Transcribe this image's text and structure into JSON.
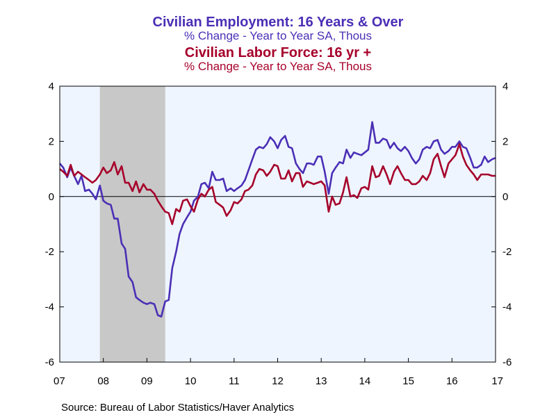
{
  "titles": {
    "series1_title": "Civilian Employment: 16 Years & Over",
    "series1_subtitle": "% Change - Year to Year     SA, Thous",
    "series2_title": "Civilian Labor Force: 16 yr +",
    "series2_subtitle": "% Change - Year to Year     SA, Thous"
  },
  "source": "Source:  Bureau of Labor Statistics/Haver Analytics",
  "colors": {
    "series1": "#4b2fb5",
    "series2": "#a6002a",
    "plot_background": "#eef5ff",
    "recession_shading": "#c8c8c8"
  },
  "chart_data": {
    "type": "line",
    "title": "Civilian Employment: 16 Years & Over / Civilian Labor Force: 16 yr +",
    "xlabel": "",
    "ylabel": "",
    "xlim": [
      2007.0,
      2017.0
    ],
    "ylim": [
      -6,
      4
    ],
    "y_ticks": [
      -6,
      -4,
      -2,
      0,
      2,
      4
    ],
    "y_tick_labels": [
      "-6",
      "-4",
      "-2",
      "0",
      "2",
      "4"
    ],
    "x_ticks": [
      2007,
      2008,
      2009,
      2010,
      2011,
      2012,
      2013,
      2014,
      2015,
      2016,
      2017
    ],
    "x_tick_labels": [
      "07",
      "08",
      "09",
      "10",
      "11",
      "12",
      "13",
      "14",
      "15",
      "16",
      "17"
    ],
    "grid": false,
    "zero_line": true,
    "right_axis_mirror": true,
    "recession_shading": [
      [
        2007.92,
        2009.42
      ]
    ],
    "series": [
      {
        "name": "Civilian Employment: 16 Years & Over",
        "color": "#4b2fb5",
        "x": [
          2007.0,
          2007.08,
          2007.17,
          2007.25,
          2007.33,
          2007.42,
          2007.5,
          2007.58,
          2007.67,
          2007.75,
          2007.83,
          2007.92,
          2008.0,
          2008.08,
          2008.17,
          2008.25,
          2008.33,
          2008.42,
          2008.5,
          2008.58,
          2008.67,
          2008.75,
          2008.83,
          2008.92,
          2009.0,
          2009.08,
          2009.17,
          2009.25,
          2009.33,
          2009.42,
          2009.5,
          2009.58,
          2009.67,
          2009.75,
          2009.83,
          2009.92,
          2010.0,
          2010.08,
          2010.17,
          2010.25,
          2010.33,
          2010.42,
          2010.5,
          2010.58,
          2010.67,
          2010.75,
          2010.83,
          2010.92,
          2011.0,
          2011.08,
          2011.17,
          2011.25,
          2011.33,
          2011.42,
          2011.5,
          2011.58,
          2011.67,
          2011.75,
          2011.83,
          2011.92,
          2012.0,
          2012.08,
          2012.17,
          2012.25,
          2012.33,
          2012.42,
          2012.5,
          2012.58,
          2012.67,
          2012.75,
          2012.83,
          2012.92,
          2013.0,
          2013.08,
          2013.17,
          2013.25,
          2013.33,
          2013.42,
          2013.5,
          2013.58,
          2013.67,
          2013.75,
          2013.83,
          2013.92,
          2014.0,
          2014.08,
          2014.17,
          2014.25,
          2014.33,
          2014.42,
          2014.5,
          2014.58,
          2014.67,
          2014.75,
          2014.83,
          2014.92,
          2015.0,
          2015.08,
          2015.17,
          2015.25,
          2015.33,
          2015.42,
          2015.5,
          2015.58,
          2015.67,
          2015.75,
          2015.83,
          2015.92,
          2016.0,
          2016.08,
          2016.17,
          2016.25,
          2016.33,
          2016.42,
          2016.5,
          2016.58,
          2016.67,
          2016.75,
          2016.83,
          2016.92,
          2017.0
        ],
        "values": [
          1.2,
          1.05,
          0.7,
          1.05,
          0.75,
          0.45,
          0.75,
          0.2,
          0.25,
          0.1,
          -0.1,
          0.4,
          -0.15,
          -0.25,
          -0.3,
          -0.8,
          -0.8,
          -1.7,
          -1.9,
          -2.9,
          -3.1,
          -3.65,
          -3.75,
          -3.85,
          -3.9,
          -3.85,
          -3.9,
          -4.3,
          -4.35,
          -3.8,
          -3.75,
          -2.6,
          -2.0,
          -1.35,
          -1.0,
          -0.75,
          -0.55,
          -0.15,
          0.0,
          0.45,
          0.5,
          0.3,
          0.9,
          0.6,
          0.6,
          0.65,
          0.2,
          0.3,
          0.2,
          0.3,
          0.4,
          0.6,
          0.95,
          1.35,
          1.7,
          1.8,
          1.75,
          1.9,
          2.15,
          2.0,
          1.75,
          2.05,
          2.2,
          1.8,
          1.75,
          1.2,
          1.0,
          0.85,
          1.2,
          1.2,
          1.15,
          1.45,
          1.45,
          0.9,
          0.1,
          0.85,
          1.05,
          1.25,
          1.2,
          1.7,
          1.4,
          1.6,
          1.55,
          1.5,
          1.6,
          1.7,
          2.7,
          1.95,
          1.95,
          2.1,
          2.05,
          1.75,
          1.95,
          1.75,
          1.65,
          1.8,
          1.65,
          1.4,
          1.2,
          1.35,
          1.7,
          1.8,
          1.75,
          2.0,
          2.05,
          1.7,
          1.55,
          1.65,
          1.8,
          1.8,
          2.0,
          1.8,
          1.75,
          1.4,
          1.05,
          1.05,
          1.15,
          1.45,
          1.25,
          1.35,
          1.4
        ]
      },
      {
        "name": "Civilian Labor Force: 16 yr +",
        "color": "#a6002a",
        "x": [
          2007.0,
          2007.08,
          2007.17,
          2007.25,
          2007.33,
          2007.42,
          2007.5,
          2007.58,
          2007.67,
          2007.75,
          2007.83,
          2007.92,
          2008.0,
          2008.08,
          2008.17,
          2008.25,
          2008.33,
          2008.42,
          2008.5,
          2008.58,
          2008.67,
          2008.75,
          2008.83,
          2008.92,
          2009.0,
          2009.08,
          2009.17,
          2009.25,
          2009.33,
          2009.42,
          2009.5,
          2009.58,
          2009.67,
          2009.75,
          2009.83,
          2009.92,
          2010.0,
          2010.08,
          2010.17,
          2010.25,
          2010.33,
          2010.42,
          2010.5,
          2010.58,
          2010.67,
          2010.75,
          2010.83,
          2010.92,
          2011.0,
          2011.08,
          2011.17,
          2011.25,
          2011.33,
          2011.42,
          2011.5,
          2011.58,
          2011.67,
          2011.75,
          2011.83,
          2011.92,
          2012.0,
          2012.08,
          2012.17,
          2012.25,
          2012.33,
          2012.42,
          2012.5,
          2012.58,
          2012.67,
          2012.75,
          2012.83,
          2012.92,
          2013.0,
          2013.08,
          2013.17,
          2013.25,
          2013.33,
          2013.42,
          2013.5,
          2013.58,
          2013.67,
          2013.75,
          2013.83,
          2013.92,
          2014.0,
          2014.08,
          2014.17,
          2014.25,
          2014.33,
          2014.42,
          2014.5,
          2014.58,
          2014.67,
          2014.75,
          2014.83,
          2014.92,
          2015.0,
          2015.08,
          2015.17,
          2015.25,
          2015.33,
          2015.42,
          2015.5,
          2015.58,
          2015.67,
          2015.75,
          2015.83,
          2015.92,
          2016.0,
          2016.08,
          2016.17,
          2016.25,
          2016.33,
          2016.42,
          2016.5,
          2016.58,
          2016.67,
          2016.75,
          2016.83,
          2016.92,
          2017.0
        ],
        "values": [
          1.0,
          0.9,
          0.75,
          1.15,
          0.75,
          0.9,
          0.8,
          0.7,
          0.6,
          0.5,
          0.6,
          0.8,
          1.05,
          0.85,
          0.95,
          1.25,
          0.8,
          1.1,
          0.5,
          0.5,
          0.2,
          0.55,
          0.15,
          0.45,
          0.25,
          0.25,
          0.1,
          -0.15,
          -0.35,
          -0.55,
          -0.6,
          -1.0,
          -0.45,
          -0.55,
          -0.15,
          -0.1,
          -0.35,
          -0.55,
          -0.1,
          0.1,
          0.0,
          0.25,
          0.35,
          -0.2,
          -0.3,
          -0.4,
          -0.7,
          -0.5,
          -0.2,
          -0.25,
          -0.1,
          0.2,
          0.25,
          0.4,
          0.8,
          1.0,
          0.95,
          0.75,
          0.9,
          1.15,
          1.1,
          0.65,
          0.65,
          0.95,
          0.55,
          0.85,
          0.85,
          0.35,
          0.55,
          0.5,
          0.45,
          0.5,
          0.55,
          0.4,
          -0.55,
          0.0,
          -0.3,
          -0.25,
          0.15,
          0.7,
          0.0,
          0.05,
          -0.05,
          0.3,
          0.35,
          0.25,
          1.1,
          0.7,
          0.75,
          1.1,
          0.8,
          0.45,
          0.9,
          1.1,
          0.85,
          0.6,
          0.6,
          0.45,
          0.45,
          0.55,
          0.75,
          0.6,
          0.85,
          1.35,
          1.55,
          1.1,
          0.7,
          1.2,
          1.35,
          1.5,
          1.9,
          1.45,
          1.15,
          0.95,
          0.8,
          0.6,
          0.8,
          0.8,
          0.8,
          0.75,
          0.75
        ]
      }
    ]
  }
}
